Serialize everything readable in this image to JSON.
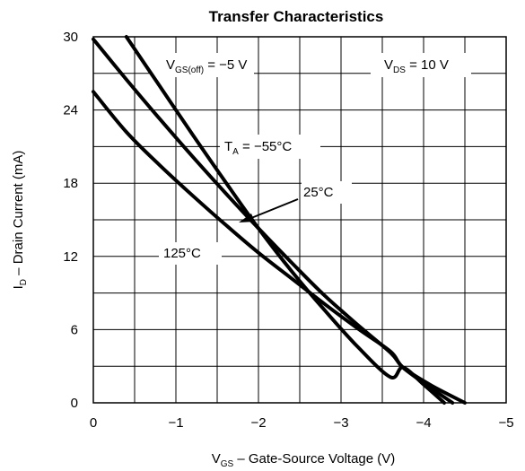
{
  "chart_data": {
    "type": "line",
    "title": "Transfer Characteristics",
    "xlabel": {
      "main": "V",
      "sub": "GS",
      "rest": " – Gate-Source Voltage (V)"
    },
    "ylabel": {
      "main": "I",
      "sub": "D",
      "rest": " – Drain Current (mA)"
    },
    "xlim": [
      0,
      -5
    ],
    "ylim": [
      0,
      30
    ],
    "x_ticks": [
      0,
      -1,
      -2,
      -3,
      -4,
      -5
    ],
    "x_tick_labels": [
      "0",
      "−1",
      "−2",
      "−3",
      "−4",
      "−5"
    ],
    "y_ticks": [
      0,
      6,
      12,
      18,
      24,
      30
    ],
    "y_tick_labels": [
      "0",
      "6",
      "12",
      "18",
      "24",
      "30"
    ],
    "grid": true,
    "series": [
      {
        "name": "T_A = −55°C",
        "x": [
          -0.4,
          -0.8,
          -1.2,
          -1.6,
          -2.0,
          -2.4,
          -2.8,
          -3.2,
          -3.6,
          -3.75,
          -4.0,
          -4.25
        ],
        "y": [
          30.0,
          26.0,
          22.0,
          18.1,
          14.3,
          10.8,
          7.6,
          4.6,
          2.1,
          2.9,
          1.5,
          0.0
        ]
      },
      {
        "name": "25°C",
        "x": [
          0.0,
          -0.4,
          -0.8,
          -1.2,
          -1.6,
          -2.0,
          -2.4,
          -2.8,
          -3.2,
          -3.6,
          -3.75,
          -4.05,
          -4.35
        ],
        "y": [
          29.8,
          26.5,
          23.3,
          20.2,
          17.2,
          14.3,
          11.5,
          8.8,
          6.4,
          4.1,
          2.9,
          1.4,
          0.0
        ]
      },
      {
        "name": "125°C",
        "x": [
          0.0,
          -0.4,
          -0.8,
          -1.2,
          -1.6,
          -2.0,
          -2.4,
          -2.8,
          -3.2,
          -3.6,
          -3.75,
          -4.1,
          -4.5
        ],
        "y": [
          25.5,
          22.2,
          19.5,
          17.0,
          14.6,
          12.3,
          10.2,
          8.1,
          6.1,
          4.2,
          2.9,
          1.4,
          0.0
        ]
      }
    ],
    "annotations": {
      "vgs_off": {
        "main": "V",
        "sub": "GS(off)",
        "rest": " = −5 V"
      },
      "vds": {
        "main": "V",
        "sub": "DS",
        "rest": " = 10 V"
      },
      "ta": {
        "main": "T",
        "sub": "A",
        "rest": " = −55°C"
      },
      "t25": "25°C",
      "t125": "125°C"
    }
  }
}
